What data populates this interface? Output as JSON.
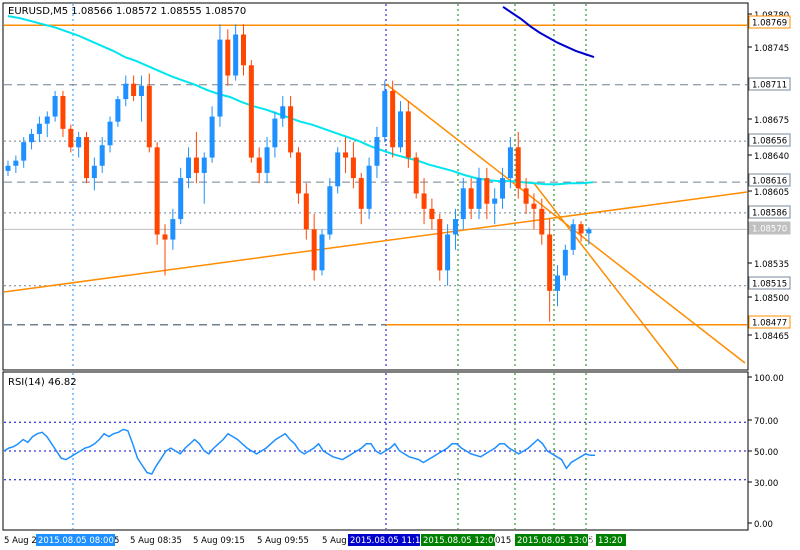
{
  "header": {
    "title": "EURUSD,M5  1.08566 1.08572 1.08555 1.08570",
    "rsi_label": "RSI(14) 46.82"
  },
  "colors": {
    "bull": "#1e90ff",
    "bear": "#ff4500",
    "ma_cyan": "#00e5ee",
    "ma_blue": "#0000cd",
    "trend": "#ff8c00",
    "rsi_line": "#1e90ff",
    "grid": "#778899",
    "vgrid_blue": "#1e90ff",
    "vgrid_navy": "#0000cd",
    "vgrid_green": "#008000",
    "current_price_bg": "#c0c0c0"
  },
  "price_axis": {
    "labels": [
      "1.08780",
      "1.08745",
      "1.08675",
      "1.08640",
      "1.08605",
      "1.08535",
      "1.08500",
      "1.08465"
    ],
    "highlighted": [
      "1.08769",
      "1.08711",
      "1.08656",
      "1.08616",
      "1.08586",
      "1.08570",
      "1.08515",
      "1.08477"
    ],
    "current": "1.08570"
  },
  "rsi_axis": {
    "labels": [
      "100.00",
      "70.00",
      "50.00",
      "30.00",
      "0.00"
    ]
  },
  "time_axis": {
    "labels": [
      "5 Aug 2",
      "5 Aug 08:35",
      "5 Aug 09:15",
      "5 Aug 09:55",
      "5 Aug"
    ],
    "highlighted": [
      "2015.08.05 08:00",
      "2015.08.05 11:15",
      "2015.08.05 12:00",
      "2015.08.05 13:00",
      "13:20"
    ],
    "partial": [
      "5",
      "015",
      "5"
    ]
  },
  "chart_data": [
    {
      "type": "candlestick",
      "title": "EURUSD,M5",
      "symbol": "EURUSD",
      "timeframe": "M5",
      "last_bar": {
        "open": 1.08566,
        "high": 1.08572,
        "low": 1.08555,
        "close": 1.0857
      },
      "ylim": [
        1.0844,
        1.0879
      ],
      "time_range": [
        "2015.08.05 07:50",
        "2015.08.05 13:30"
      ],
      "candles": [
        [
          1.08627,
          1.08637,
          1.08622,
          1.08632
        ],
        [
          1.08632,
          1.08642,
          1.08625,
          1.08637
        ],
        [
          1.08637,
          1.0866,
          1.0863,
          1.08655
        ],
        [
          1.08655,
          1.08668,
          1.08648,
          1.08663
        ],
        [
          1.08663,
          1.0868,
          1.08655,
          1.08673
        ],
        [
          1.08673,
          1.08685,
          1.0866,
          1.0868
        ],
        [
          1.0868,
          1.08705,
          1.08675,
          1.087
        ],
        [
          1.087,
          1.08705,
          1.0866,
          1.08668
        ],
        [
          1.08668,
          1.08672,
          1.08645,
          1.0865
        ],
        [
          1.0865,
          1.08665,
          1.0864,
          1.0866
        ],
        [
          1.0866,
          1.08665,
          1.08615,
          1.0862
        ],
        [
          1.0862,
          1.0864,
          1.08608,
          1.08632
        ],
        [
          1.08632,
          1.0866,
          1.08625,
          1.08652
        ],
        [
          1.08652,
          1.0868,
          1.08645,
          1.08675
        ],
        [
          1.08675,
          1.087,
          1.0867,
          1.08697
        ],
        [
          1.08697,
          1.0872,
          1.0869,
          1.08712
        ],
        [
          1.08712,
          1.0872,
          1.08695,
          1.087
        ],
        [
          1.087,
          1.0872,
          1.08675,
          1.0871
        ],
        [
          1.0871,
          1.08722,
          1.08645,
          1.0865
        ],
        [
          1.0865,
          1.08655,
          1.08555,
          1.08565
        ],
        [
          1.08565,
          1.08575,
          1.08525,
          1.0856
        ],
        [
          1.0856,
          1.0859,
          1.0855,
          1.0858
        ],
        [
          1.0858,
          1.0863,
          1.08575,
          1.0862
        ],
        [
          1.0862,
          1.0865,
          1.0861,
          1.0864
        ],
        [
          1.0864,
          1.08665,
          1.08615,
          1.08625
        ],
        [
          1.08625,
          1.08645,
          1.08595,
          1.0864
        ],
        [
          1.0864,
          1.0869,
          1.08635,
          1.0868
        ],
        [
          1.0868,
          1.0877,
          1.0867,
          1.08755
        ],
        [
          1.08755,
          1.08765,
          1.0871,
          1.0872
        ],
        [
          1.0872,
          1.0877,
          1.08715,
          1.0876
        ],
        [
          1.0876,
          1.0877,
          1.0872,
          1.0873
        ],
        [
          1.0873,
          1.08735,
          1.08635,
          1.0864
        ],
        [
          1.0864,
          1.0865,
          1.08615,
          1.08625
        ],
        [
          1.08625,
          1.0866,
          1.08615,
          1.0865
        ],
        [
          1.0865,
          1.08685,
          1.0864,
          1.08678
        ],
        [
          1.08678,
          1.087,
          1.0867,
          1.0869
        ],
        [
          1.0869,
          1.087,
          1.0864,
          1.08645
        ],
        [
          1.08645,
          1.0865,
          1.08595,
          1.08605
        ],
        [
          1.08605,
          1.08615,
          1.0856,
          1.0857
        ],
        [
          1.0857,
          1.08585,
          1.0852,
          1.0853
        ],
        [
          1.0853,
          1.0857,
          1.08525,
          1.08565
        ],
        [
          1.08565,
          1.0862,
          1.0856,
          1.08612
        ],
        [
          1.08612,
          1.0865,
          1.08605,
          1.08645
        ],
        [
          1.08645,
          1.0866,
          1.08625,
          1.0864
        ],
        [
          1.0864,
          1.08655,
          1.0861,
          1.0862
        ],
        [
          1.0862,
          1.08625,
          1.08575,
          1.0859
        ],
        [
          1.0859,
          1.0864,
          1.0858,
          1.08632
        ],
        [
          1.08632,
          1.0867,
          1.0862,
          1.0866
        ],
        [
          1.0866,
          1.08715,
          1.08655,
          1.08705
        ],
        [
          1.08705,
          1.08715,
          1.0864,
          1.0865
        ],
        [
          1.0865,
          1.08695,
          1.08645,
          1.08685
        ],
        [
          1.08685,
          1.08695,
          1.0863,
          1.0864
        ],
        [
          1.0864,
          1.08645,
          1.086,
          1.08605
        ],
        [
          1.08605,
          1.0862,
          1.08575,
          1.0859
        ],
        [
          1.0859,
          1.086,
          1.0857,
          1.0858
        ],
        [
          1.0858,
          1.08585,
          1.0852,
          1.0853
        ],
        [
          1.0853,
          1.08575,
          1.08515,
          1.08565
        ],
        [
          1.08565,
          1.0859,
          1.0855,
          1.0858
        ],
        [
          1.0858,
          1.0862,
          1.0857,
          1.0861
        ],
        [
          1.0861,
          1.0862,
          1.0858,
          1.0859
        ],
        [
          1.0859,
          1.0863,
          1.0858,
          1.0862
        ],
        [
          1.0862,
          1.0863,
          1.0858,
          1.08595
        ],
        [
          1.08595,
          1.0861,
          1.08575,
          1.086
        ],
        [
          1.086,
          1.0863,
          1.0859,
          1.0862
        ],
        [
          1.0862,
          1.0866,
          1.0861,
          1.0865
        ],
        [
          1.0865,
          1.08665,
          1.086,
          1.0861
        ],
        [
          1.0861,
          1.0862,
          1.08585,
          1.08595
        ],
        [
          1.08595,
          1.08605,
          1.0857,
          1.0859
        ],
        [
          1.0859,
          1.086,
          1.08555,
          1.08565
        ],
        [
          1.08565,
          1.0858,
          1.0848,
          1.0851
        ],
        [
          1.0851,
          1.08535,
          1.08495,
          1.08525
        ],
        [
          1.08525,
          1.08555,
          1.0852,
          1.0855
        ],
        [
          1.0855,
          1.0858,
          1.08545,
          1.08575
        ],
        [
          1.08575,
          1.08578,
          1.08558,
          1.08566
        ],
        [
          1.08566,
          1.08572,
          1.08555,
          1.0857
        ]
      ],
      "ma_fast": [
        1.08778,
        1.08776,
        1.08773,
        1.0877,
        1.08767,
        1.08763,
        1.08759,
        1.08754,
        1.08749,
        1.08744,
        1.08738,
        1.08734,
        1.08729,
        1.08724,
        1.08719,
        1.08715,
        1.08711,
        1.08706,
        1.08702,
        1.08699,
        1.08694,
        1.0869,
        1.08687,
        1.08683,
        1.08679,
        1.08675,
        1.08672,
        1.08668,
        1.08664,
        1.0866,
        1.08656,
        1.08651,
        1.08647,
        1.08643,
        1.0864,
        1.08637,
        1.08633,
        1.0863,
        1.08627,
        1.08623,
        1.0862,
        1.08618,
        1.08617,
        1.08617,
        1.08616,
        1.08615,
        1.08614,
        1.08614,
        1.08615,
        1.08615,
        1.08616
      ],
      "ma_slow": [
        1.08787,
        1.08781,
        1.08775,
        1.08768,
        1.08762,
        1.08757,
        1.08752,
        1.08748,
        1.08744,
        1.08741,
        1.08738
      ],
      "levels": {
        "resistance_top": 1.08769,
        "resistance_dashed": 1.08711,
        "dotted_656": 1.08656,
        "dashed_616": 1.08616,
        "dotted_586": 1.08586,
        "current": 1.0857,
        "dotted_515": 1.08515,
        "support_dashed": 1.08477
      }
    },
    {
      "type": "line",
      "title": "RSI(14) 46.82",
      "ylim": [
        0,
        100
      ],
      "levels": [
        70,
        50,
        30
      ],
      "series": [
        {
          "name": "RSI(14)",
          "values": [
            50,
            52,
            53,
            55,
            58,
            56,
            60,
            62,
            63,
            60,
            55,
            50,
            45,
            44,
            46,
            48,
            50,
            52,
            53,
            55,
            58,
            62,
            60,
            62,
            63,
            65,
            64,
            55,
            45,
            40,
            35,
            34,
            40,
            45,
            50,
            52,
            50,
            48,
            52,
            55,
            58,
            55,
            50,
            48,
            52,
            55,
            58,
            62,
            60,
            58,
            55,
            52,
            50,
            48,
            50,
            52,
            55,
            58,
            60,
            62,
            58,
            55,
            50,
            48,
            50,
            52,
            55,
            50,
            48,
            46,
            45,
            44,
            46,
            48,
            50,
            52,
            55,
            55,
            50,
            48,
            50,
            52,
            55,
            50,
            48,
            46,
            45,
            44,
            42,
            44,
            46,
            48,
            50,
            52,
            55,
            55,
            52,
            50,
            48,
            47,
            46,
            48,
            50,
            52,
            55,
            55,
            52,
            50,
            48,
            50,
            52,
            55,
            58,
            55,
            50,
            48,
            46,
            44,
            38,
            42,
            44,
            46,
            48,
            47,
            47
          ]
        }
      ]
    }
  ]
}
